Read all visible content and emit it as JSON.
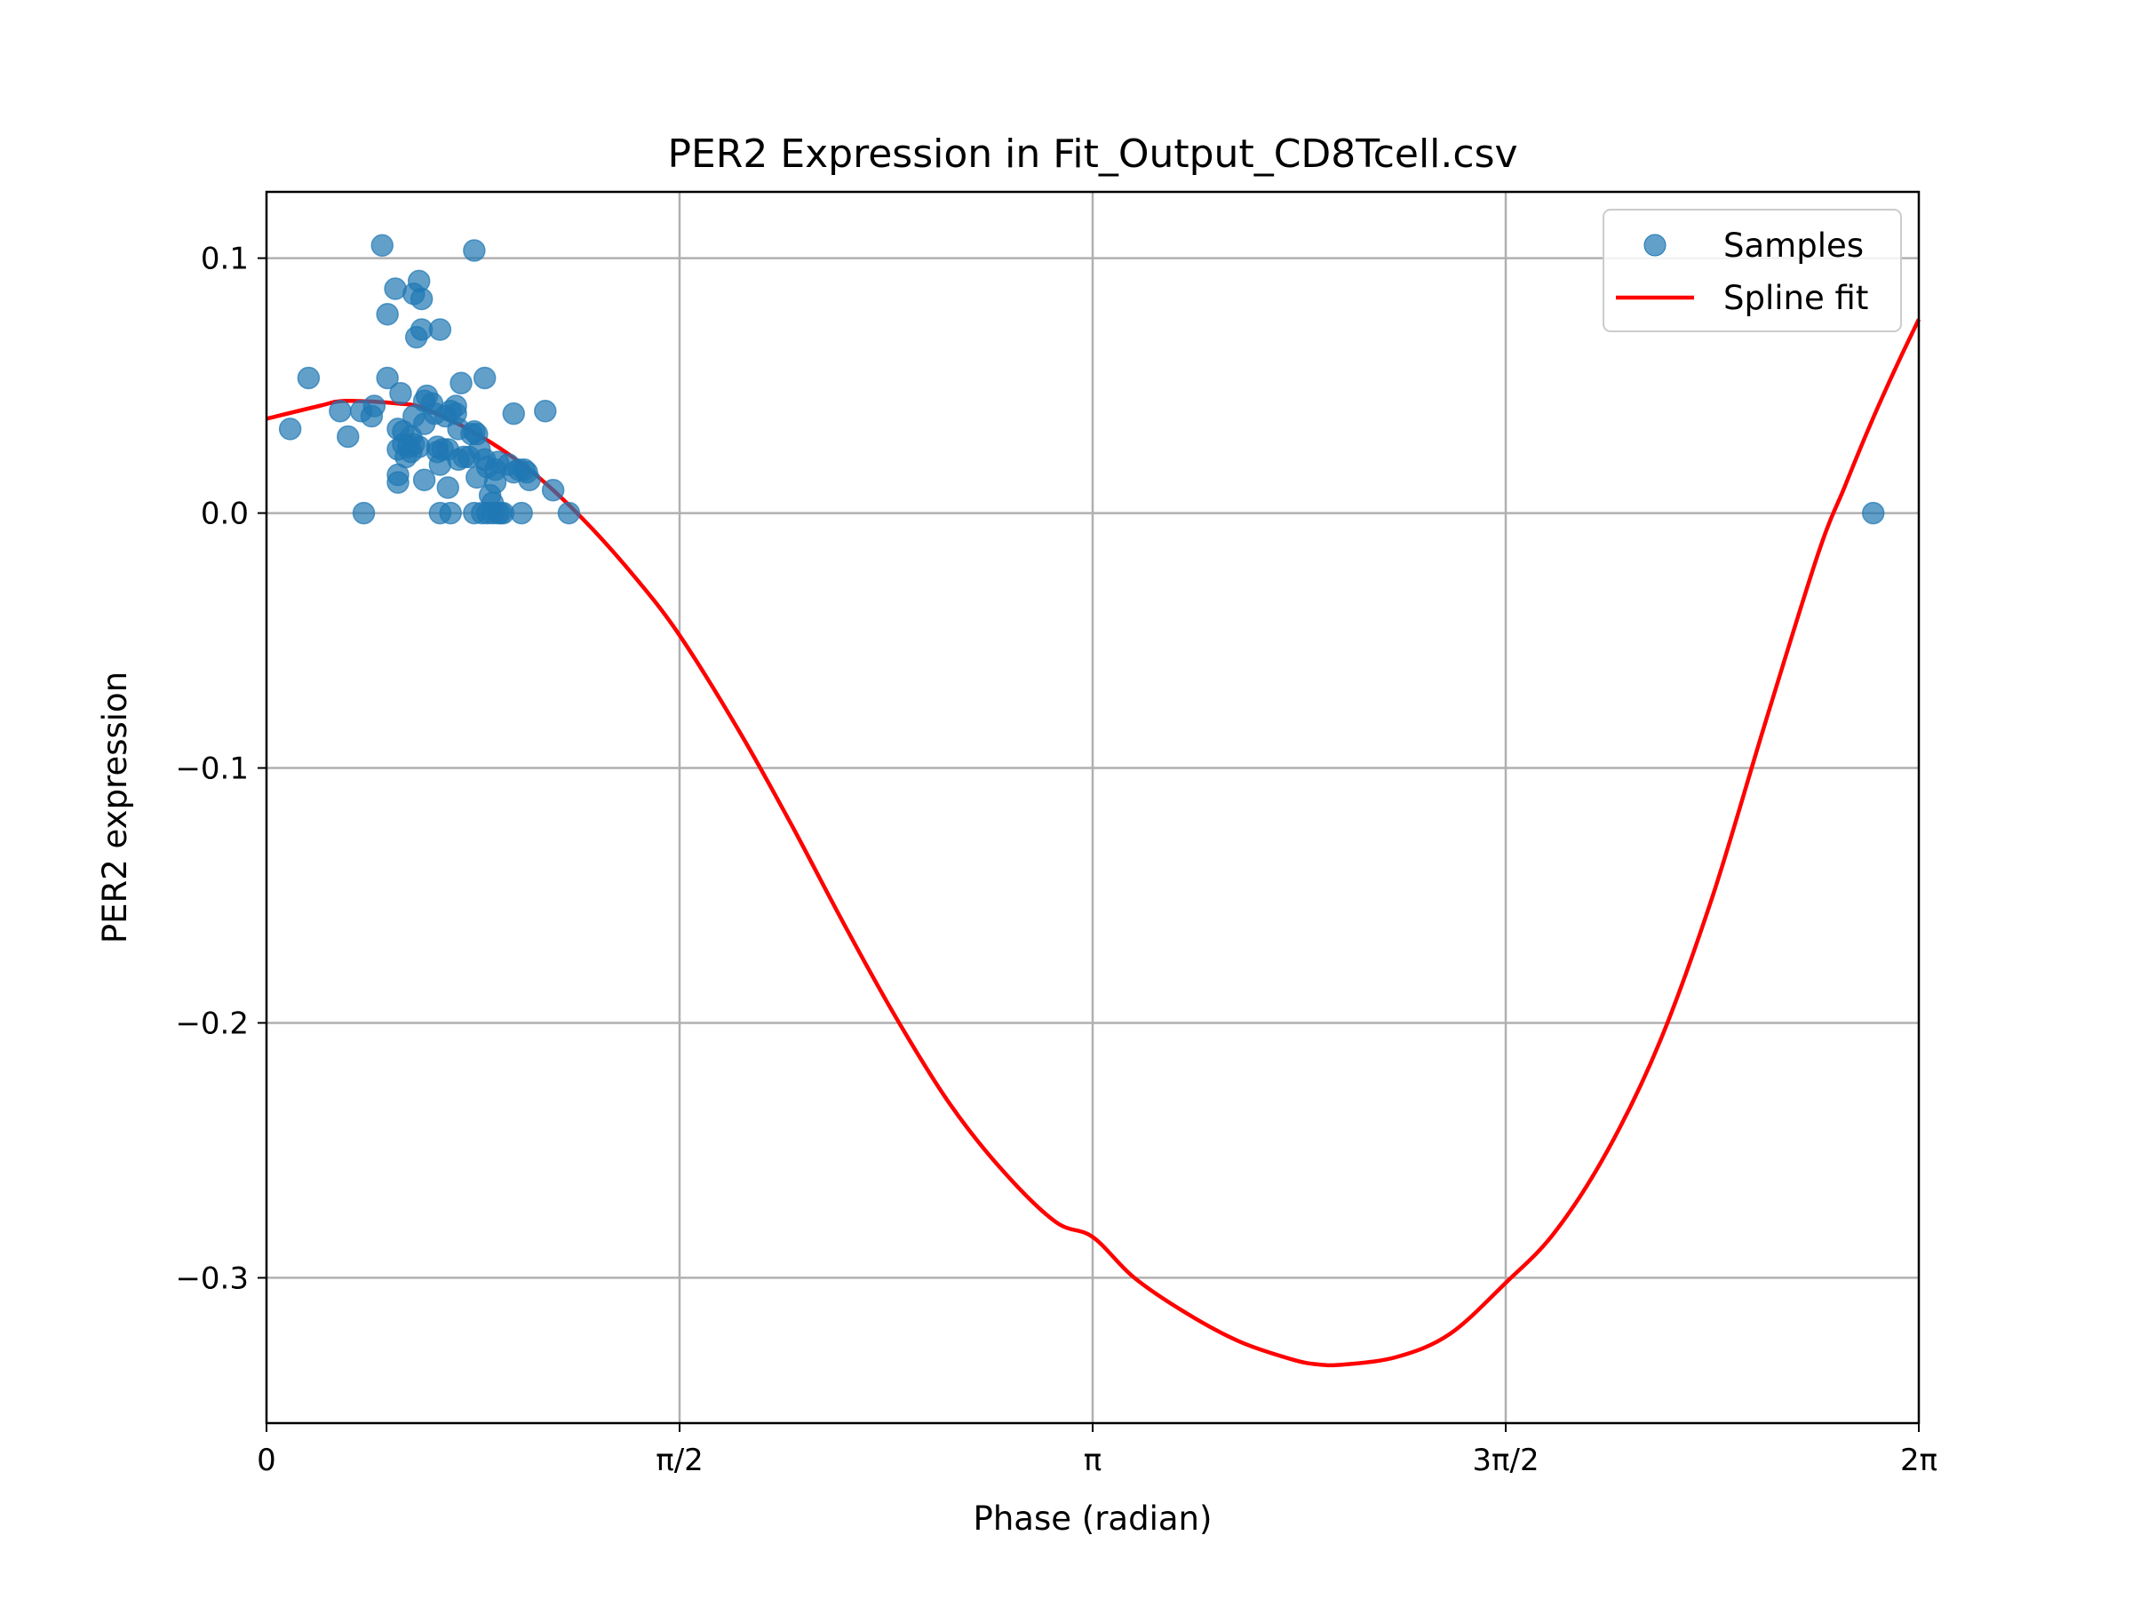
{
  "chart_data": {
    "type": "scatter",
    "title": "PER2 Expression in Fit_Output_CD8Tcell.csv",
    "xlabel": "Phase (radian)",
    "ylabel": "PER2 expression",
    "xlim": [
      0,
      6.2832
    ],
    "ylim": [
      -0.357,
      0.126
    ],
    "grid": true,
    "legend_position": "top-right",
    "xticks": [
      {
        "value": 0,
        "label": "0"
      },
      {
        "value": 1.5708,
        "label": "π/2"
      },
      {
        "value": 3.1416,
        "label": "π"
      },
      {
        "value": 4.7124,
        "label": "3π/2"
      },
      {
        "value": 6.2832,
        "label": "2π"
      }
    ],
    "yticks": [
      {
        "value": 0.1,
        "label": "0.1"
      },
      {
        "value": 0.0,
        "label": "0.0"
      },
      {
        "value": -0.1,
        "label": "−0.1"
      },
      {
        "value": -0.2,
        "label": "−0.2"
      },
      {
        "value": -0.3,
        "label": "−0.3"
      }
    ],
    "colors": {
      "samples": "#1f77b4",
      "spline": "#ff0000"
    },
    "series": [
      {
        "name": "Samples",
        "kind": "scatter",
        "points": [
          [
            0.09,
            0.033
          ],
          [
            0.16,
            0.053
          ],
          [
            0.28,
            0.04
          ],
          [
            0.31,
            0.03
          ],
          [
            0.36,
            0.04
          ],
          [
            0.37,
            0.0
          ],
          [
            0.4,
            0.038
          ],
          [
            0.41,
            0.042
          ],
          [
            0.44,
            0.105
          ],
          [
            0.46,
            0.078
          ],
          [
            0.46,
            0.053
          ],
          [
            0.49,
            0.088
          ],
          [
            0.5,
            0.033
          ],
          [
            0.5,
            0.025
          ],
          [
            0.5,
            0.015
          ],
          [
            0.5,
            0.012
          ],
          [
            0.51,
            0.047
          ],
          [
            0.52,
            0.032
          ],
          [
            0.52,
            0.027
          ],
          [
            0.53,
            0.022
          ],
          [
            0.54,
            0.026
          ],
          [
            0.55,
            0.03
          ],
          [
            0.55,
            0.024
          ],
          [
            0.56,
            0.086
          ],
          [
            0.56,
            0.038
          ],
          [
            0.56,
            0.027
          ],
          [
            0.57,
            0.069
          ],
          [
            0.58,
            0.091
          ],
          [
            0.58,
            0.026
          ],
          [
            0.59,
            0.084
          ],
          [
            0.59,
            0.072
          ],
          [
            0.6,
            0.035
          ],
          [
            0.6,
            0.013
          ],
          [
            0.6,
            0.044
          ],
          [
            0.61,
            0.046
          ],
          [
            0.63,
            0.043
          ],
          [
            0.64,
            0.039
          ],
          [
            0.65,
            0.026
          ],
          [
            0.65,
            0.024
          ],
          [
            0.66,
            0.072
          ],
          [
            0.66,
            0.019
          ],
          [
            0.66,
            0.0
          ],
          [
            0.67,
            0.025
          ],
          [
            0.68,
            0.038
          ],
          [
            0.69,
            0.025
          ],
          [
            0.69,
            0.01
          ],
          [
            0.7,
            0.04
          ],
          [
            0.7,
            0.0
          ],
          [
            0.72,
            0.042
          ],
          [
            0.72,
            0.039
          ],
          [
            0.73,
            0.033
          ],
          [
            0.73,
            0.021
          ],
          [
            0.74,
            0.051
          ],
          [
            0.75,
            0.022
          ],
          [
            0.77,
            0.022
          ],
          [
            0.78,
            0.031
          ],
          [
            0.79,
            0.103
          ],
          [
            0.79,
            0.032
          ],
          [
            0.79,
            0.0
          ],
          [
            0.8,
            0.031
          ],
          [
            0.8,
            0.014
          ],
          [
            0.81,
            0.025
          ],
          [
            0.82,
            0.0
          ],
          [
            0.83,
            0.053
          ],
          [
            0.83,
            0.021
          ],
          [
            0.84,
            0.0
          ],
          [
            0.84,
            0.018
          ],
          [
            0.85,
            0.007
          ],
          [
            0.86,
            0.004
          ],
          [
            0.86,
            0.0
          ],
          [
            0.87,
            0.012
          ],
          [
            0.87,
            0.017
          ],
          [
            0.88,
            0.02
          ],
          [
            0.88,
            0.0
          ],
          [
            0.89,
            0.0
          ],
          [
            0.9,
            0.0
          ],
          [
            0.92,
            0.019
          ],
          [
            0.94,
            0.016
          ],
          [
            0.94,
            0.039
          ],
          [
            0.96,
            0.017
          ],
          [
            0.97,
            0.0
          ],
          [
            0.98,
            0.017
          ],
          [
            0.99,
            0.016
          ],
          [
            1.0,
            0.013
          ],
          [
            1.06,
            0.04
          ],
          [
            1.09,
            0.009
          ],
          [
            1.15,
            0.0
          ],
          [
            6.11,
            0.0
          ]
        ]
      },
      {
        "name": "Spline fit",
        "kind": "line",
        "knots": [
          [
            0,
            0.037
          ],
          [
            0.2,
            0.042
          ],
          [
            0.3,
            0.044
          ],
          [
            0.5,
            0.043
          ],
          [
            0.6,
            0.041
          ],
          [
            0.8,
            0.031
          ],
          [
            1.0,
            0.017
          ],
          [
            1.2,
            -0.002
          ],
          [
            1.4,
            -0.025
          ],
          [
            1.571,
            -0.048
          ],
          [
            1.8,
            -0.086
          ],
          [
            2.0,
            -0.123
          ],
          [
            2.2,
            -0.162
          ],
          [
            2.4,
            -0.199
          ],
          [
            2.6,
            -0.232
          ],
          [
            2.8,
            -0.258
          ],
          [
            3.0,
            -0.278
          ],
          [
            3.142,
            -0.284
          ],
          [
            3.3,
            -0.3
          ],
          [
            3.5,
            -0.314
          ],
          [
            3.7,
            -0.325
          ],
          [
            3.9,
            -0.332
          ],
          [
            4.0,
            -0.334
          ],
          [
            4.1,
            -0.334
          ],
          [
            4.3,
            -0.331
          ],
          [
            4.5,
            -0.322
          ],
          [
            4.712,
            -0.302
          ],
          [
            4.9,
            -0.282
          ],
          [
            5.1,
            -0.25
          ],
          [
            5.3,
            -0.207
          ],
          [
            5.5,
            -0.15
          ],
          [
            5.7,
            -0.082
          ],
          [
            5.9,
            -0.016
          ],
          [
            6.0,
            0.01
          ],
          [
            6.1,
            0.035
          ],
          [
            6.2,
            0.058
          ],
          [
            6.2832,
            0.076
          ]
        ]
      }
    ]
  }
}
